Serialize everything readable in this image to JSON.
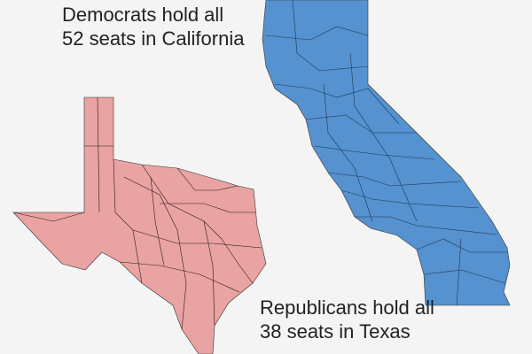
{
  "california": {
    "caption_line1": "Democrats hold all",
    "caption_line2": "52 seats in California",
    "party": "Democrats",
    "seats": 52,
    "color": "#5592cf"
  },
  "texas": {
    "caption_line1": "Republicans hold all",
    "caption_line2": "38 seats in Texas",
    "party": "Republicans",
    "seats": 38,
    "color": "#e9a3a3"
  },
  "district_line_color": "#222222",
  "background": "#f4f4f4"
}
